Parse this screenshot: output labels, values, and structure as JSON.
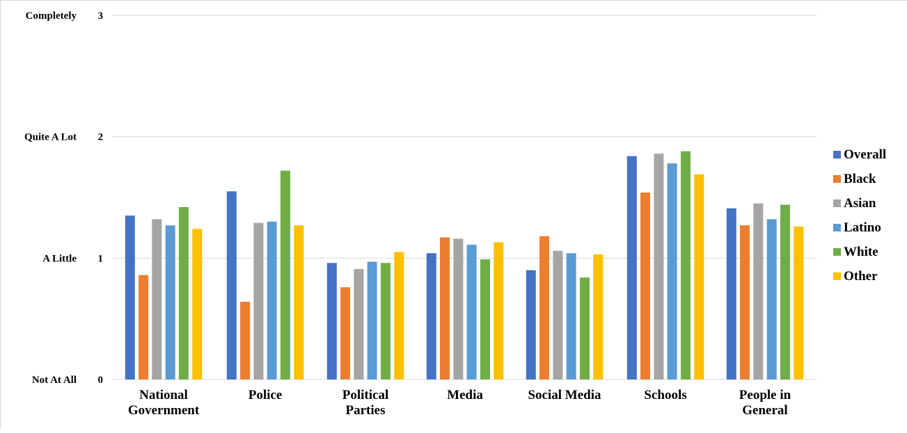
{
  "colors": {
    "overall": "#4472c4",
    "black": "#ed7d31",
    "asian": "#a5a5a5",
    "latino": "#5b9bd5",
    "white": "#70ad47",
    "other": "#ffc000",
    "gridline": "#d9d9d9"
  },
  "chart_data": {
    "type": "bar",
    "title": "",
    "xlabel": "",
    "ylabel": "",
    "ylim": [
      0,
      3
    ],
    "grid": true,
    "legend_position": "right",
    "y_ticks": [
      {
        "value": 0,
        "number": "0",
        "word": "Not At All"
      },
      {
        "value": 1,
        "number": "1",
        "word": "A Little"
      },
      {
        "value": 2,
        "number": "2",
        "word": "Quite A Lot"
      },
      {
        "value": 3,
        "number": "3",
        "word": "Completely"
      }
    ],
    "categories": [
      [
        "National",
        "Government"
      ],
      [
        "Police"
      ],
      [
        "Political",
        "Parties"
      ],
      [
        "Media"
      ],
      [
        "Social Media"
      ],
      [
        "Schools"
      ],
      [
        "People in",
        "General"
      ]
    ],
    "series": [
      {
        "name": "Overall",
        "color_key": "overall",
        "values": [
          1.35,
          1.55,
          0.96,
          1.04,
          0.9,
          1.84,
          1.41
        ]
      },
      {
        "name": "Black",
        "color_key": "black",
        "values": [
          0.86,
          0.64,
          0.76,
          1.17,
          1.18,
          1.54,
          1.27
        ]
      },
      {
        "name": "Asian",
        "color_key": "asian",
        "values": [
          1.32,
          1.29,
          0.91,
          1.16,
          1.06,
          1.86,
          1.45
        ]
      },
      {
        "name": "Latino",
        "color_key": "latino",
        "values": [
          1.27,
          1.3,
          0.97,
          1.11,
          1.04,
          1.78,
          1.32
        ]
      },
      {
        "name": "White",
        "color_key": "white",
        "values": [
          1.42,
          1.72,
          0.96,
          0.99,
          0.84,
          1.88,
          1.44
        ]
      },
      {
        "name": "Other",
        "color_key": "other",
        "values": [
          1.24,
          1.27,
          1.05,
          1.13,
          1.03,
          1.69,
          1.26
        ]
      }
    ]
  }
}
